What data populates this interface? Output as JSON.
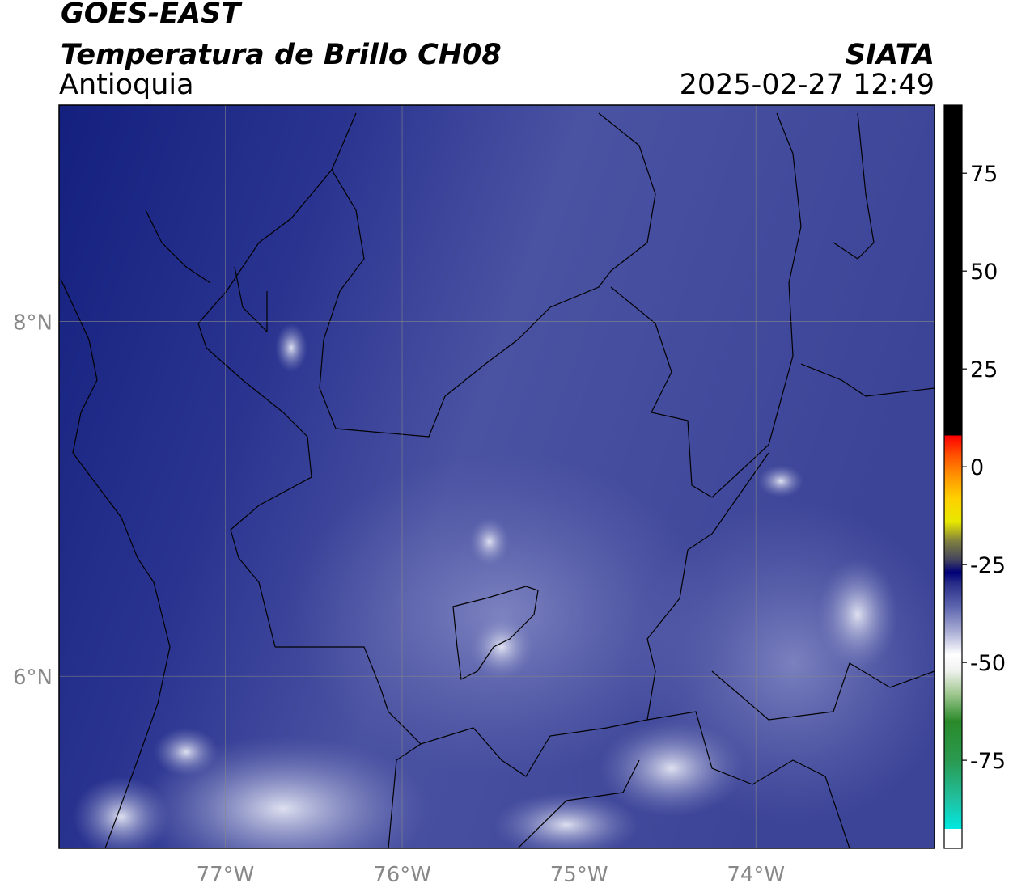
{
  "header": {
    "satellite": "GOES-EAST",
    "product": "Temperatura de Brillo CH08",
    "region": "Antioquia",
    "source": "SIATA",
    "datetime": "2025-02-27 12:49"
  },
  "map": {
    "lonlim": [
      -77.94,
      -72.99
    ],
    "latlim": [
      5.03,
      9.22
    ],
    "lon_ticks": [
      {
        "value": -77,
        "label": "77°W"
      },
      {
        "value": -76,
        "label": "76°W"
      },
      {
        "value": -75,
        "label": "75°W"
      },
      {
        "value": -74,
        "label": "74°W"
      }
    ],
    "lat_ticks": [
      {
        "value": 8,
        "label": "8°N"
      },
      {
        "value": 6,
        "label": "6°N"
      }
    ],
    "grid": true
  },
  "colorbar": {
    "ylim": [
      -97.5,
      92.4
    ],
    "ticks": [
      75,
      50,
      25,
      0,
      -25,
      -50,
      -75
    ],
    "stops": [
      {
        "value": -97.5,
        "color": "#ffffff"
      },
      {
        "value": -92.5,
        "color": "#ffffff"
      },
      {
        "value": -92.5,
        "color": "#00e8e0"
      },
      {
        "value": -85,
        "color": "#20c0a0"
      },
      {
        "value": -75,
        "color": "#2a9a50"
      },
      {
        "value": -65,
        "color": "#2a8a2a"
      },
      {
        "value": -58,
        "color": "#a0c890"
      },
      {
        "value": -52,
        "color": "#f0f2f0"
      },
      {
        "value": -48,
        "color": "#ffffff"
      },
      {
        "value": -42,
        "color": "#a8acd4"
      },
      {
        "value": -36,
        "color": "#6068b0"
      },
      {
        "value": -30,
        "color": "#2a2f8a"
      },
      {
        "value": -27,
        "color": "#000078"
      },
      {
        "value": -24,
        "color": "#404060"
      },
      {
        "value": -19,
        "color": "#808040"
      },
      {
        "value": -14,
        "color": "#e8e800"
      },
      {
        "value": -8,
        "color": "#ffd000"
      },
      {
        "value": -2,
        "color": "#ff9000"
      },
      {
        "value": 3,
        "color": "#ff5000"
      },
      {
        "value": 8,
        "color": "#ff0000"
      },
      {
        "value": 8,
        "color": "#000000"
      },
      {
        "value": 92.4,
        "color": "#000000"
      }
    ]
  }
}
